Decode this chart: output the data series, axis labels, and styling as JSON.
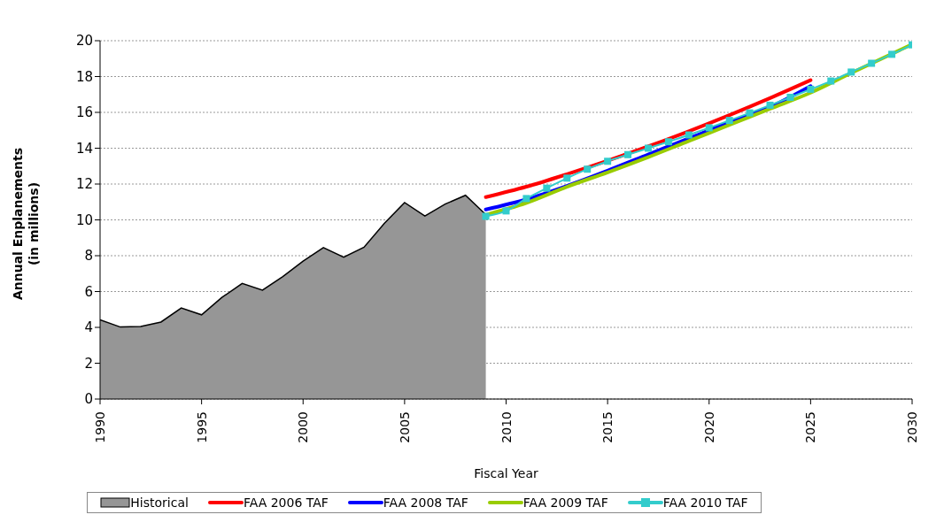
{
  "chart_data": {
    "type": "line",
    "xlabel": "Fiscal Year",
    "ylabel": "Annual Enplanements (in millions)",
    "xlim": [
      1990,
      2030
    ],
    "xticks": [
      1990,
      1995,
      2000,
      2005,
      2010,
      2015,
      2020,
      2025,
      2030
    ],
    "ylim": [
      0,
      20
    ],
    "yticks": [
      0,
      2,
      4,
      6,
      8,
      10,
      12,
      14,
      16,
      18,
      20
    ],
    "grid": "y",
    "legend": "bottom",
    "line_style": "solid",
    "series": [
      {
        "name": "Historical",
        "type": "area",
        "color": "#969696",
        "marker": "none",
        "x": [
          1990,
          1991,
          1992,
          1993,
          1994,
          1995,
          1996,
          1997,
          1998,
          1999,
          2000,
          2001,
          2002,
          2003,
          2004,
          2005,
          2006,
          2007,
          2008,
          2009
        ],
        "values": [
          4.42,
          4.02,
          4.05,
          4.3,
          5.08,
          4.7,
          5.67,
          6.45,
          6.08,
          6.83,
          7.7,
          8.45,
          7.92,
          8.47,
          9.8,
          10.97,
          10.22,
          10.88,
          11.37,
          10.3
        ]
      },
      {
        "name": "FAA 2006 TAF",
        "color": "#ff0000",
        "marker": "none",
        "x": [
          2009,
          2011,
          2013,
          2015,
          2017,
          2019,
          2021,
          2023,
          2025
        ],
        "values": [
          11.27,
          11.85,
          12.55,
          13.3,
          14.1,
          14.95,
          15.85,
          16.8,
          17.8
        ]
      },
      {
        "name": "FAA 2008 TAF",
        "color": "#0000ff",
        "marker": "none",
        "x": [
          2009,
          2011,
          2013,
          2015,
          2017,
          2019,
          2021,
          2023,
          2025
        ],
        "values": [
          10.58,
          11.15,
          11.9,
          12.75,
          13.65,
          14.55,
          15.45,
          16.3,
          17.47
        ]
      },
      {
        "name": "FAA 2009 TAF",
        "color": "#99cc00",
        "marker": "none",
        "x": [
          2009,
          2011,
          2013,
          2015,
          2017,
          2019,
          2021,
          2023,
          2025,
          2027,
          2030
        ],
        "values": [
          10.28,
          10.95,
          11.85,
          12.65,
          13.5,
          14.4,
          15.3,
          16.2,
          17.1,
          18.2,
          19.8
        ]
      },
      {
        "name": "FAA 2010 TAF",
        "color": "#33cccc",
        "marker": "square",
        "x": [
          2009,
          2010,
          2011,
          2012,
          2013,
          2014,
          2015,
          2016,
          2017,
          2018,
          2019,
          2020,
          2021,
          2022,
          2023,
          2024,
          2025,
          2026,
          2027,
          2028,
          2029,
          2030
        ],
        "values": [
          10.2,
          10.5,
          11.19,
          11.77,
          12.33,
          12.83,
          13.27,
          13.64,
          14.0,
          14.36,
          14.74,
          15.14,
          15.55,
          15.97,
          16.4,
          16.84,
          17.29,
          17.75,
          18.25,
          18.74,
          19.24,
          19.77
        ]
      }
    ]
  }
}
